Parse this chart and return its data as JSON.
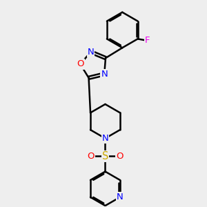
{
  "bg_color": "#eeeeee",
  "bond_color": "#000000",
  "bond_width": 1.8,
  "atom_colors": {
    "N": "#0000ff",
    "O": "#ff0000",
    "F": "#ee00ee",
    "S": "#ccaa00",
    "C": "#000000"
  },
  "font_size": 9.5
}
